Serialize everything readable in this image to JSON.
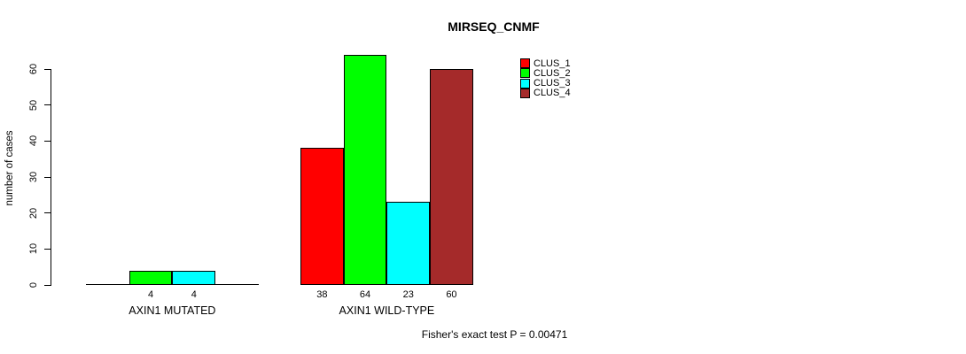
{
  "chart_data": {
    "type": "bar",
    "title": "MIRSEQ_CNMF",
    "ylabel": "number of cases",
    "ylim": [
      0,
      60
    ],
    "yticks": [
      0,
      10,
      20,
      30,
      40,
      50,
      60
    ],
    "categories": [
      "AXIN1 MUTATED",
      "AXIN1 WILD-TYPE"
    ],
    "series": [
      {
        "name": "CLUS_1",
        "color": "#ff0000",
        "values": [
          0,
          38
        ]
      },
      {
        "name": "CLUS_2",
        "color": "#00ff00",
        "values": [
          4,
          64
        ]
      },
      {
        "name": "CLUS_3",
        "color": "#00ffff",
        "values": [
          4,
          23
        ]
      },
      {
        "name": "CLUS_4",
        "color": "#a52a2a",
        "values": [
          0,
          60
        ]
      }
    ],
    "bar_value_labels": [
      "4",
      "4",
      "38",
      "64",
      "23",
      "60"
    ],
    "value_labels_shown_for_zero": false,
    "annotation": "Fisher's exact test P = 0.00471",
    "legend_position": "top-right",
    "grid": false,
    "axis_color": "#000000",
    "background": "#ffffff"
  }
}
